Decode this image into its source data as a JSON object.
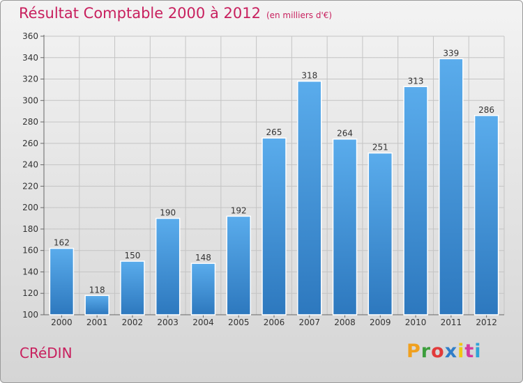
{
  "header": {
    "title": "Résultat Comptable 2000 à 2012",
    "subtitle": "(en milliers d'€)"
  },
  "footer": {
    "commune": "CRéDIN",
    "brand": "Proxiti",
    "brand_colors": [
      "#f0a01e",
      "#3c9e3c",
      "#e23a3a",
      "#2f7dc8",
      "#f0c814",
      "#d33b9e",
      "#2fa3d8"
    ]
  },
  "colors": {
    "bar_light": "#5aacec",
    "bar_dark": "#2d78be",
    "title": "#c8205e"
  },
  "chart_data": {
    "type": "bar",
    "title": "Résultat Comptable 2000 à 2012",
    "categories": [
      "2000",
      "2001",
      "2002",
      "2003",
      "2004",
      "2005",
      "2006",
      "2007",
      "2008",
      "2009",
      "2010",
      "2011",
      "2012"
    ],
    "values": [
      162,
      118,
      150,
      190,
      148,
      192,
      265,
      318,
      264,
      251,
      313,
      339,
      286
    ],
    "ylim": [
      100,
      360
    ],
    "yticks": [
      100,
      120,
      140,
      160,
      180,
      200,
      220,
      240,
      260,
      280,
      300,
      320,
      340,
      360
    ],
    "grid": true,
    "xlabel": "",
    "ylabel": ""
  }
}
